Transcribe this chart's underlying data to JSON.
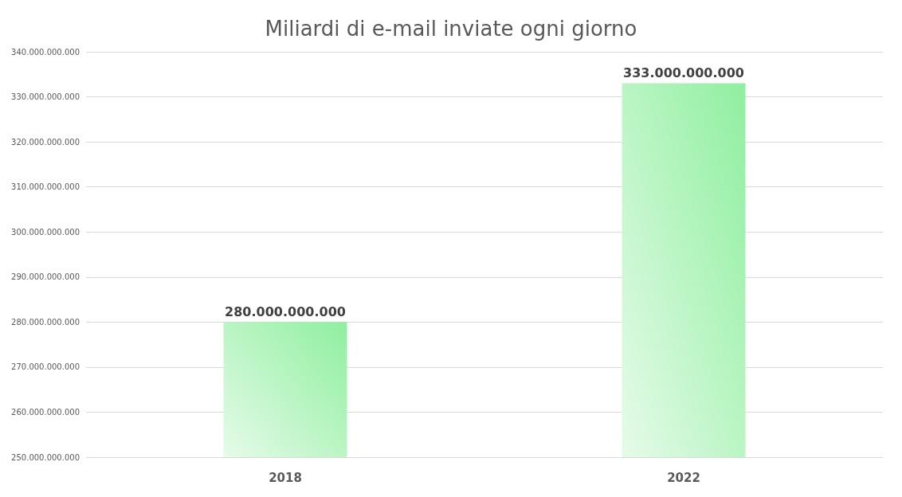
{
  "chart_data": {
    "type": "bar",
    "title": "Miliardi di e-mail inviate ogni giorno",
    "categories": [
      "2018",
      "2022"
    ],
    "values": [
      280000000000,
      333000000000
    ],
    "value_labels": [
      "280.000.000.000",
      "333.000.000.000"
    ],
    "color": "#8fef9f",
    "ylim": [
      250000000000,
      340000000000
    ],
    "yticks": [
      {
        "value": 250000000000,
        "label": "250.000.000.000"
      },
      {
        "value": 260000000000,
        "label": "260.000.000.000"
      },
      {
        "value": 270000000000,
        "label": "270.000.000.000"
      },
      {
        "value": 280000000000,
        "label": "280.000.000.000"
      },
      {
        "value": 290000000000,
        "label": "290.000.000.000"
      },
      {
        "value": 300000000000,
        "label": "300.000.000.000"
      },
      {
        "value": 310000000000,
        "label": "310.000.000.000"
      },
      {
        "value": 320000000000,
        "label": "320.000.000.000"
      },
      {
        "value": 330000000000,
        "label": "330.000.000.000"
      },
      {
        "value": 340000000000,
        "label": "340.000.000.000"
      }
    ],
    "grid": "y"
  }
}
